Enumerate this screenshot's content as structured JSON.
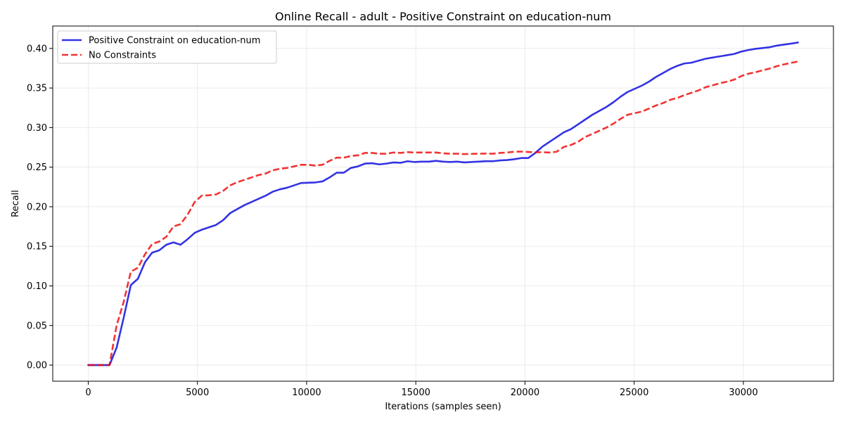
{
  "chart_data": {
    "type": "line",
    "title": "Online Recall - adult - Positive Constraint on education-num",
    "xlabel": "Iterations (samples seen)",
    "ylabel": "Recall",
    "xlim": [
      -1625,
      34125
    ],
    "ylim": [
      -0.0204,
      0.4283
    ],
    "xticks": [
      0,
      5000,
      10000,
      15000,
      20000,
      25000,
      30000
    ],
    "xtick_labels": [
      "0",
      "5000",
      "10000",
      "15000",
      "20000",
      "25000",
      "30000"
    ],
    "yticks": [
      0.0,
      0.05,
      0.1,
      0.15,
      0.2,
      0.25,
      0.3,
      0.35,
      0.4
    ],
    "ytick_labels": [
      "0.00",
      "0.05",
      "0.10",
      "0.15",
      "0.20",
      "0.25",
      "0.30",
      "0.35",
      "0.40"
    ],
    "grid": true,
    "legend_position": "top-left",
    "series": [
      {
        "name": "Positive Constraint on education-num",
        "color": "#0000dd",
        "style": "solid",
        "points": [
          [
            0,
            0
          ],
          [
            325,
            0
          ],
          [
            650,
            0
          ],
          [
            975,
            0
          ],
          [
            1300,
            0.022
          ],
          [
            1625,
            0.06
          ],
          [
            1950,
            0.101
          ],
          [
            2275,
            0.109
          ],
          [
            2600,
            0.13
          ],
          [
            2925,
            0.142
          ],
          [
            3250,
            0.145
          ],
          [
            3575,
            0.152
          ],
          [
            3900,
            0.155
          ],
          [
            4225,
            0.152
          ],
          [
            4550,
            0.159
          ],
          [
            4875,
            0.167
          ],
          [
            5200,
            0.171
          ],
          [
            5525,
            0.174
          ],
          [
            5850,
            0.177
          ],
          [
            6175,
            0.183
          ],
          [
            6500,
            0.192
          ],
          [
            6825,
            0.197
          ],
          [
            7150,
            0.202
          ],
          [
            7475,
            0.206
          ],
          [
            7800,
            0.21
          ],
          [
            8125,
            0.214
          ],
          [
            8450,
            0.219
          ],
          [
            8775,
            0.222
          ],
          [
            9100,
            0.224
          ],
          [
            9425,
            0.227
          ],
          [
            9750,
            0.23
          ],
          [
            10075,
            0.2303
          ],
          [
            10400,
            0.2307
          ],
          [
            10725,
            0.232
          ],
          [
            11050,
            0.237
          ],
          [
            11375,
            0.243
          ],
          [
            11700,
            0.243
          ],
          [
            12025,
            0.249
          ],
          [
            12350,
            0.251
          ],
          [
            12675,
            0.2545
          ],
          [
            13000,
            0.255
          ],
          [
            13325,
            0.2535
          ],
          [
            13650,
            0.2545
          ],
          [
            13975,
            0.256
          ],
          [
            14300,
            0.2555
          ],
          [
            14625,
            0.2575
          ],
          [
            14950,
            0.2565
          ],
          [
            15275,
            0.257
          ],
          [
            15600,
            0.257
          ],
          [
            15925,
            0.258
          ],
          [
            16250,
            0.257
          ],
          [
            16575,
            0.2565
          ],
          [
            16900,
            0.257
          ],
          [
            17225,
            0.256
          ],
          [
            17550,
            0.2565
          ],
          [
            17875,
            0.257
          ],
          [
            18200,
            0.2575
          ],
          [
            18525,
            0.2575
          ],
          [
            18850,
            0.2585
          ],
          [
            19175,
            0.259
          ],
          [
            19500,
            0.26
          ],
          [
            19825,
            0.2615
          ],
          [
            20150,
            0.2615
          ],
          [
            20475,
            0.268
          ],
          [
            20800,
            0.276
          ],
          [
            21125,
            0.282
          ],
          [
            21450,
            0.288
          ],
          [
            21775,
            0.294
          ],
          [
            22100,
            0.298
          ],
          [
            22425,
            0.304
          ],
          [
            22750,
            0.31
          ],
          [
            23075,
            0.316
          ],
          [
            23400,
            0.321
          ],
          [
            23725,
            0.326
          ],
          [
            24050,
            0.332
          ],
          [
            24375,
            0.339
          ],
          [
            24700,
            0.345
          ],
          [
            25025,
            0.349
          ],
          [
            25350,
            0.353
          ],
          [
            25675,
            0.358
          ],
          [
            26000,
            0.364
          ],
          [
            26325,
            0.369
          ],
          [
            26650,
            0.374
          ],
          [
            26975,
            0.378
          ],
          [
            27300,
            0.381
          ],
          [
            27625,
            0.382
          ],
          [
            27950,
            0.3845
          ],
          [
            28275,
            0.387
          ],
          [
            28600,
            0.3885
          ],
          [
            28925,
            0.39
          ],
          [
            29250,
            0.3915
          ],
          [
            29575,
            0.393
          ],
          [
            29900,
            0.396
          ],
          [
            30225,
            0.398
          ],
          [
            30550,
            0.3995
          ],
          [
            30875,
            0.4005
          ],
          [
            31200,
            0.4015
          ],
          [
            31525,
            0.4035
          ],
          [
            31850,
            0.4048
          ],
          [
            32175,
            0.406
          ],
          [
            32500,
            0.4075
          ]
        ]
      },
      {
        "name": "No Constraints",
        "color": "#ee0000",
        "style": "dashed",
        "points": [
          [
            0,
            0
          ],
          [
            325,
            0
          ],
          [
            650,
            0
          ],
          [
            975,
            0
          ],
          [
            1300,
            0.05
          ],
          [
            1625,
            0.08
          ],
          [
            1950,
            0.118
          ],
          [
            2275,
            0.123
          ],
          [
            2600,
            0.14
          ],
          [
            2925,
            0.153
          ],
          [
            3250,
            0.156
          ],
          [
            3575,
            0.162
          ],
          [
            3900,
            0.175
          ],
          [
            4225,
            0.178
          ],
          [
            4550,
            0.19
          ],
          [
            4875,
            0.206
          ],
          [
            5200,
            0.214
          ],
          [
            5525,
            0.2145
          ],
          [
            5850,
            0.2155
          ],
          [
            6175,
            0.22
          ],
          [
            6500,
            0.227
          ],
          [
            6825,
            0.231
          ],
          [
            7150,
            0.234
          ],
          [
            7475,
            0.237
          ],
          [
            7800,
            0.24
          ],
          [
            8125,
            0.242
          ],
          [
            8450,
            0.246
          ],
          [
            8775,
            0.248
          ],
          [
            9100,
            0.249
          ],
          [
            9425,
            0.251
          ],
          [
            9750,
            0.253
          ],
          [
            10075,
            0.253
          ],
          [
            10400,
            0.252
          ],
          [
            10725,
            0.253
          ],
          [
            11050,
            0.258
          ],
          [
            11375,
            0.262
          ],
          [
            11700,
            0.262
          ],
          [
            12025,
            0.264
          ],
          [
            12350,
            0.265
          ],
          [
            12675,
            0.268
          ],
          [
            13000,
            0.268
          ],
          [
            13325,
            0.267
          ],
          [
            13650,
            0.267
          ],
          [
            13975,
            0.2685
          ],
          [
            14300,
            0.268
          ],
          [
            14625,
            0.269
          ],
          [
            14950,
            0.2685
          ],
          [
            15275,
            0.2685
          ],
          [
            15600,
            0.2685
          ],
          [
            15925,
            0.2685
          ],
          [
            16250,
            0.2675
          ],
          [
            16575,
            0.267
          ],
          [
            16900,
            0.267
          ],
          [
            17225,
            0.2665
          ],
          [
            17550,
            0.2668
          ],
          [
            17875,
            0.267
          ],
          [
            18200,
            0.2672
          ],
          [
            18525,
            0.267
          ],
          [
            18850,
            0.268
          ],
          [
            19175,
            0.2685
          ],
          [
            19500,
            0.2695
          ],
          [
            19825,
            0.2697
          ],
          [
            20150,
            0.2692
          ],
          [
            20475,
            0.2688
          ],
          [
            20800,
            0.2688
          ],
          [
            21125,
            0.2685
          ],
          [
            21450,
            0.2695
          ],
          [
            21775,
            0.2755
          ],
          [
            22100,
            0.278
          ],
          [
            22425,
            0.282
          ],
          [
            22750,
            0.288
          ],
          [
            23075,
            0.292
          ],
          [
            23400,
            0.296
          ],
          [
            23725,
            0.3
          ],
          [
            24050,
            0.305
          ],
          [
            24375,
            0.311
          ],
          [
            24700,
            0.3162
          ],
          [
            25025,
            0.3182
          ],
          [
            25350,
            0.3202
          ],
          [
            25675,
            0.324
          ],
          [
            26000,
            0.328
          ],
          [
            26325,
            0.331
          ],
          [
            26650,
            0.335
          ],
          [
            26975,
            0.3375
          ],
          [
            27300,
            0.341
          ],
          [
            27625,
            0.344
          ],
          [
            27950,
            0.347
          ],
          [
            28275,
            0.351
          ],
          [
            28600,
            0.3535
          ],
          [
            28925,
            0.356
          ],
          [
            29250,
            0.358
          ],
          [
            29575,
            0.3605
          ],
          [
            29900,
            0.365
          ],
          [
            30225,
            0.368
          ],
          [
            30550,
            0.37
          ],
          [
            30875,
            0.3723
          ],
          [
            31200,
            0.3745
          ],
          [
            31525,
            0.3775
          ],
          [
            31850,
            0.3798
          ],
          [
            32175,
            0.3817
          ],
          [
            32500,
            0.3835
          ]
        ]
      }
    ]
  }
}
